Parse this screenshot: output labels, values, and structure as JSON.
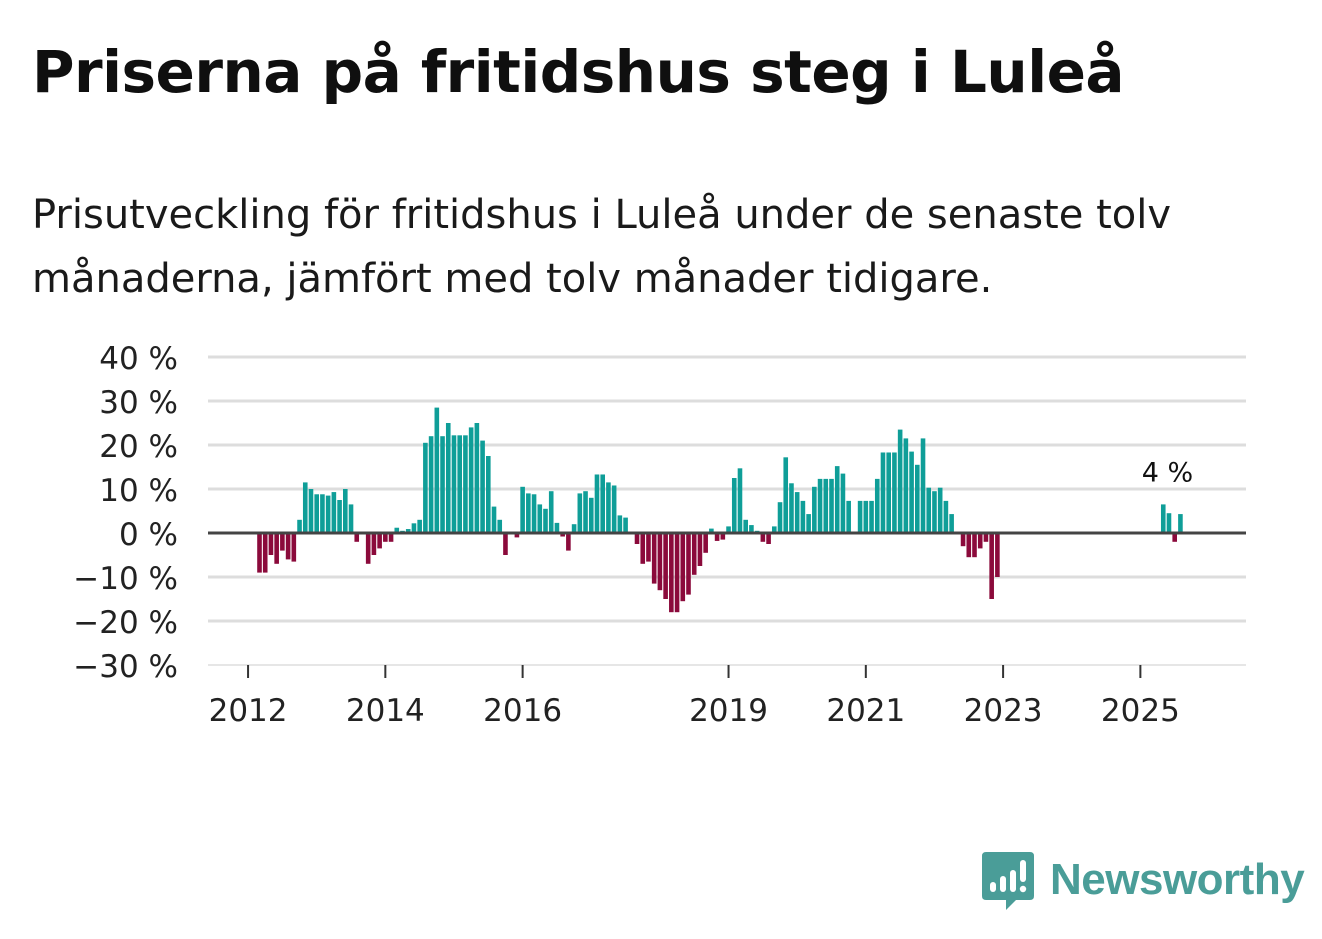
{
  "title": "Priserna på fritidshus steg i Luleå",
  "subtitle": "Prisutveckling för fritidshus i Luleå under de senaste tolv månaderna, jämfört med tolv månader tidigare.",
  "brand": {
    "name": "Newsworthy",
    "icon": "newsworthy-logo-icon"
  },
  "colors": {
    "positive": "#0f9e98",
    "negative": "#8b0a3b",
    "grid": "#dddddd",
    "zero": "#444444",
    "text": "#222222"
  },
  "chart_data": {
    "type": "bar",
    "title": "Priserna på fritidshus steg i Luleå",
    "xlabel": "",
    "ylabel": "",
    "ylim": [
      -30,
      40
    ],
    "yticks": [
      40,
      30,
      20,
      10,
      0,
      -10,
      -20,
      -30
    ],
    "ytick_labels": [
      "40 %",
      "30 %",
      "20 %",
      "10 %",
      "0 %",
      "−10 %",
      "−20 %",
      "−30 %"
    ],
    "xticks": [
      {
        "label": "2012",
        "index": 6
      },
      {
        "label": "2014",
        "index": 30
      },
      {
        "label": "2016",
        "index": 54
      },
      {
        "label": "2019",
        "index": 90
      },
      {
        "label": "2021",
        "index": 114
      },
      {
        "label": "2023",
        "index": 138
      },
      {
        "label": "2025",
        "index": 162
      }
    ],
    "start": "2011-06",
    "unit": "%",
    "annotation": {
      "label": "4 %",
      "index": 169,
      "value": 4
    },
    "values": [
      null,
      null,
      null,
      null,
      null,
      null,
      null,
      null,
      -9,
      -9,
      -5,
      -7,
      -4,
      -6,
      -6.5,
      3,
      11.5,
      10,
      8.8,
      8.8,
      8.5,
      9.3,
      7.5,
      10,
      6.5,
      -2,
      0,
      -7,
      -5,
      -3.5,
      -2,
      -2,
      1.2,
      0.5,
      0.9,
      2.2,
      3,
      20.5,
      22,
      28.5,
      22,
      25,
      22.2,
      22.2,
      22.2,
      24,
      25,
      21,
      17.5,
      6,
      3,
      -5,
      0,
      -1,
      10.5,
      9,
      8.8,
      6.5,
      5.5,
      9.5,
      2.3,
      -0.8,
      -4,
      2,
      9,
      9.5,
      8,
      13.3,
      13.3,
      11.5,
      10.8,
      4,
      3.5,
      0,
      -2.5,
      -7,
      -6.5,
      -11.5,
      -13,
      -15,
      -18,
      -18,
      -15.5,
      -14,
      -9.5,
      -7.5,
      -4.5,
      1,
      -1.8,
      -1.5,
      1.5,
      12.5,
      14.7,
      3,
      1.8,
      0.5,
      -2,
      -2.5,
      1.5,
      7,
      17.2,
      11.3,
      9.3,
      7.3,
      4.3,
      10.5,
      12.3,
      12.3,
      12.3,
      15.2,
      13.5,
      7.3,
      0,
      7.3,
      7.3,
      7.3,
      12.3,
      18.3,
      18.3,
      18.3,
      23.5,
      21.5,
      18.5,
      15.5,
      21.5,
      10.3,
      9.5,
      10.3,
      7.3,
      4.3,
      0,
      -3,
      -5.5,
      -5.5,
      -3.5,
      -2,
      -15,
      -10,
      null,
      null,
      null,
      null,
      null,
      null,
      null,
      null,
      null,
      null,
      null,
      null,
      null,
      null,
      null,
      null,
      null,
      null,
      null,
      null,
      null,
      null,
      null,
      null,
      null,
      null,
      null,
      null,
      6.5,
      4.5,
      -2,
      4.3
    ]
  }
}
